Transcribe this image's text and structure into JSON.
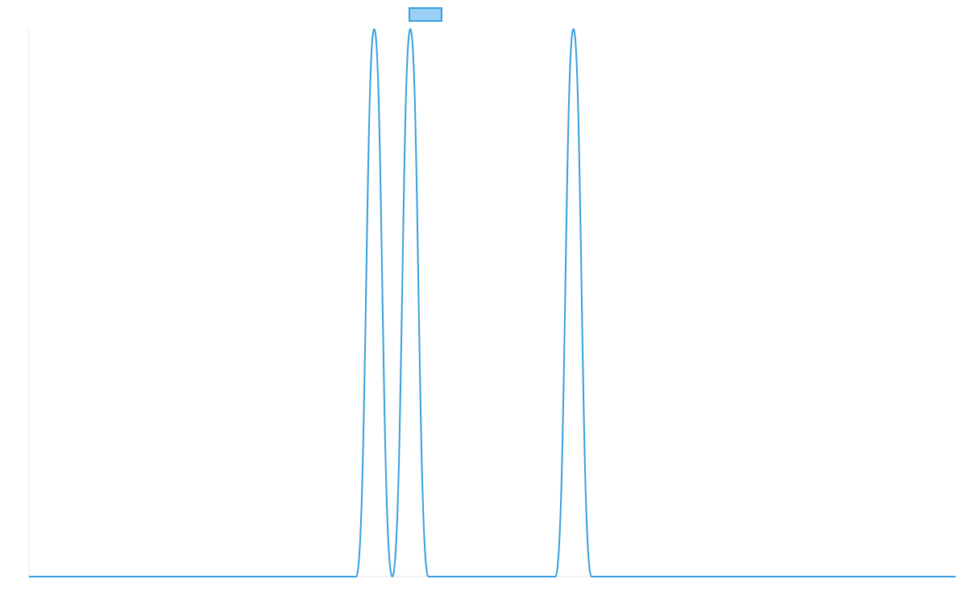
{
  "chart_data": {
    "type": "line",
    "title": "",
    "xlabel": "",
    "ylabel": "",
    "xlim": [
      0,
      1
    ],
    "ylim": [
      0,
      1
    ],
    "grid": false,
    "legend": {
      "placement": "top-center",
      "show_label": false
    },
    "colors": {
      "series": "#369fdd",
      "legend_fill": "#9ad0f5",
      "axis": "#e6e6e6",
      "background": "#ffffff"
    },
    "series": [
      {
        "x": [
          0.0,
          0.353,
          0.3725,
          0.392,
          0.4115,
          0.431,
          0.568,
          0.5875,
          0.607,
          1.0
        ],
        "y": [
          0,
          0,
          1,
          0,
          1,
          0,
          0,
          1,
          0,
          0
        ]
      }
    ]
  }
}
